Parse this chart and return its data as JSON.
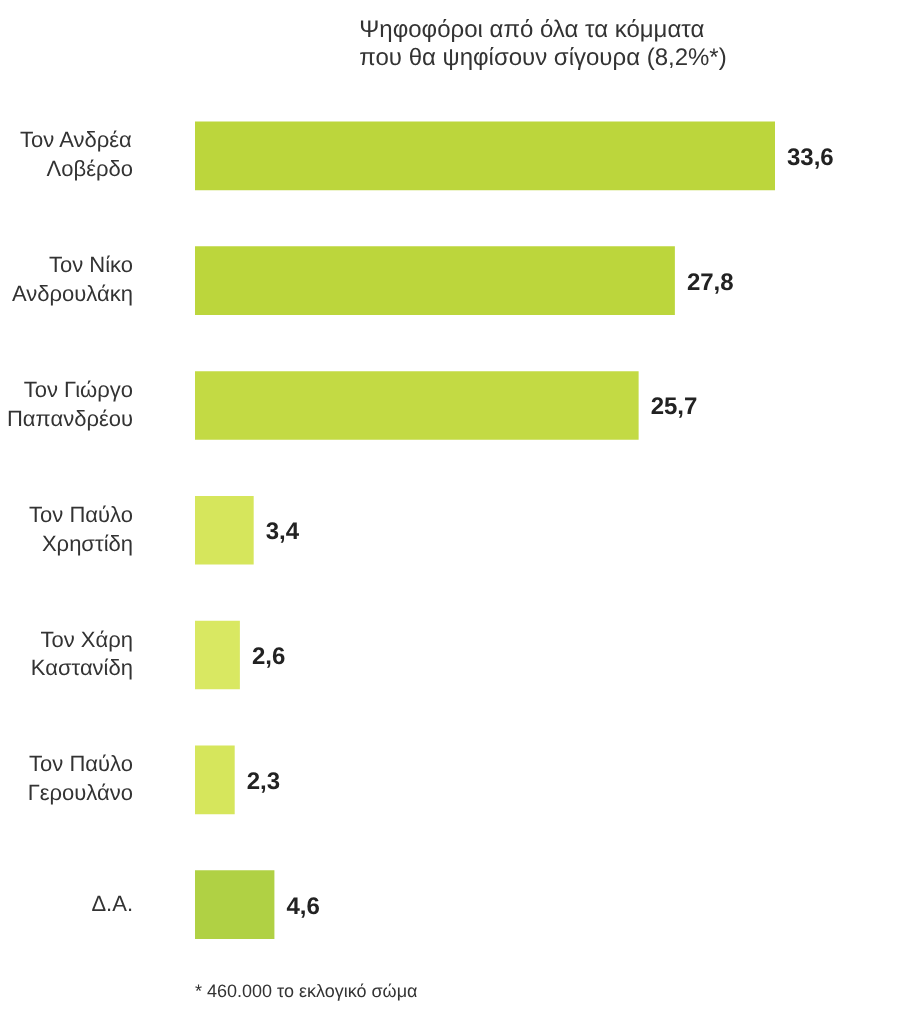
{
  "chart_data": {
    "type": "bar",
    "orientation": "horizontal",
    "title": "Ψηφοφόροι από όλα τα κόμματα\nπου θα ψηφίσουν σίγουρα (8,2%*)",
    "categories": [
      "Τον Ανδρέα\nΛοβέρδο",
      "Τον Νίκο\nΑνδρουλάκη",
      "Τον Γιώργο\nΠαπανδρέου",
      "Τον Παύλο\nΧρηστίδη",
      "Τον Χάρη\nΚαστανίδη",
      "Τον Παύλο\nΓερουλάνο",
      "Δ.Α."
    ],
    "values": [
      33.6,
      27.8,
      25.7,
      3.4,
      2.6,
      2.3,
      4.6
    ],
    "value_labels": [
      "33,6",
      "27,8",
      "25,7",
      "3,4",
      "2,6",
      "2,3",
      "4,6"
    ],
    "colors": [
      "#bcd63c",
      "#bcd63c",
      "#c3da44",
      "#d6e65c",
      "#d9e862",
      "#d6e65c",
      "#b0d144"
    ],
    "annotations": [
      "* 460.000 το εκλογικό σώμα"
    ]
  }
}
